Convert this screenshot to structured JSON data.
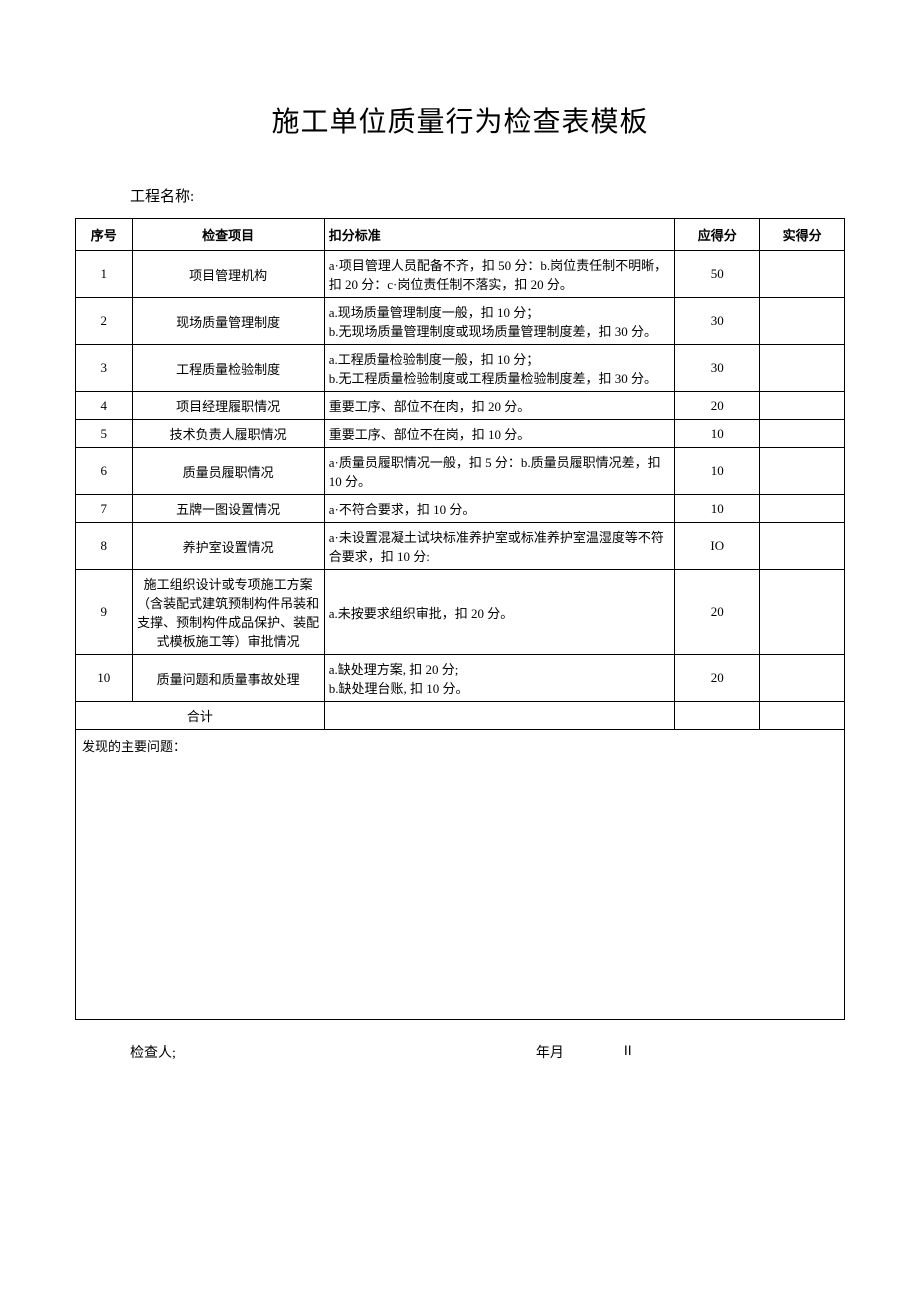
{
  "title": "施工单位质量行为检查表模板",
  "projectLabel": "工程名称:",
  "headers": {
    "seq": "序号",
    "item": "检查项目",
    "criteria": "扣分标准",
    "score": "应得分",
    "actual": "实得分"
  },
  "rows": [
    {
      "seq": "1",
      "item": "项目管理机构",
      "criteria": "a·项目管理人员配备不齐，扣 50 分：b.岗位责任制不明晰，扣 20 分：c·岗位责任制不落实，扣 20 分。",
      "score": "50",
      "actual": ""
    },
    {
      "seq": "2",
      "item": "现场质量管理制度",
      "criteria": "a.现场质量管理制度一般，扣 10 分；\nb.无现场质量管理制度或现场质量管理制度差，扣 30 分。",
      "score": "30",
      "actual": ""
    },
    {
      "seq": "3",
      "item": "工程质量检验制度",
      "criteria": "a.工程质量检验制度一般，扣 10 分；\nb.无工程质量检验制度或工程质量检验制度差，扣 30 分。",
      "score": "30",
      "actual": ""
    },
    {
      "seq": "4",
      "item": "项目经理履职情况",
      "criteria": "重要工序、部位不在肉，扣 20 分。",
      "score": "20",
      "actual": ""
    },
    {
      "seq": "5",
      "item": "技术负责人履职情况",
      "criteria": "重要工序、部位不在岗，扣 10 分。",
      "score": "10",
      "actual": ""
    },
    {
      "seq": "6",
      "item": "质量员履职情况",
      "criteria": "a·质量员履职情况一般，扣 5 分：b.质量员履职情况差，扣 10 分。",
      "score": "10",
      "actual": ""
    },
    {
      "seq": "7",
      "item": "五牌一图设置情况",
      "criteria": "a·不符合要求，扣 10 分。",
      "score": "10",
      "actual": ""
    },
    {
      "seq": "8",
      "item": "养护室设置情况",
      "criteria": "a·未设置混凝土试块标准养护室或标准养护室温湿度等不符合要求，扣 10 分:",
      "score": "IO",
      "actual": ""
    },
    {
      "seq": "9",
      "item": "施工组织设计或专项施工方案（含装配式建筑预制构件吊装和支撑、预制构件成品保护、装配式模板施工等）审批情况",
      "criteria": "a.未按要求组织审批，扣 20 分。",
      "score": "20",
      "actual": ""
    },
    {
      "seq": "10",
      "item": "质量问题和质量事故处理",
      "criteria": "a.缺处理方案, 扣 20 分;\nb.缺处理台账, 扣 10 分。",
      "score": "20",
      "actual": ""
    }
  ],
  "totalLabel": "合计",
  "issuesLabel": "发现的主要问题：",
  "footer": {
    "inspector": "检查人;",
    "date": "年月",
    "page": "II"
  }
}
